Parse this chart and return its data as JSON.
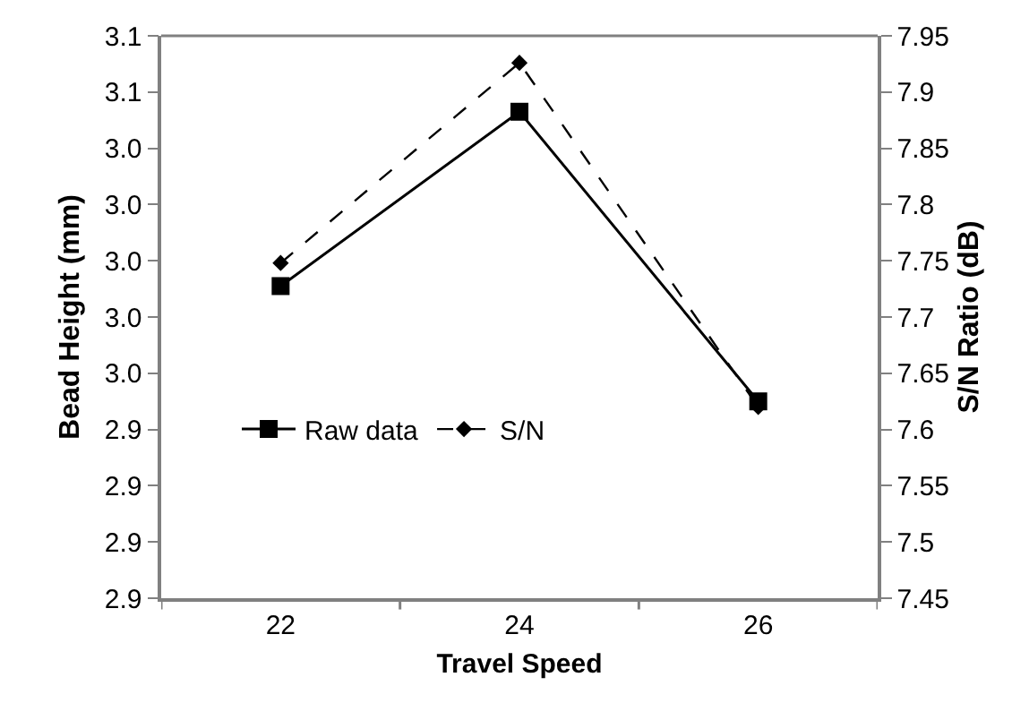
{
  "chart_data": {
    "type": "line",
    "xlabel": "Travel Speed",
    "ylabel": "Bead Height (mm)",
    "y2label": "S/N Ratio (dB)",
    "categories": [
      "22",
      "24",
      "26"
    ],
    "series": [
      {
        "name": "Raw data",
        "color": "#000000",
        "values": [
          2.991,
          3.053,
          2.95
        ],
        "marker": "square",
        "line_style": "solid"
      },
      {
        "name": "S/N",
        "color": "#000000",
        "values": [
          7.748,
          7.926,
          7.62
        ],
        "marker": "diamond",
        "line_style": "dashed",
        "axis": "y2"
      }
    ],
    "ylim": [
      2.88,
      3.08
    ],
    "yticks": [
      {
        "value": 2.88,
        "label": "2.9"
      },
      {
        "value": 2.9,
        "label": "2.9"
      },
      {
        "value": 2.92,
        "label": "2.9"
      },
      {
        "value": 2.94,
        "label": "2.9"
      },
      {
        "value": 2.96,
        "label": "3.0"
      },
      {
        "value": 2.98,
        "label": "3.0"
      },
      {
        "value": 3.0,
        "label": "3.0"
      },
      {
        "value": 3.02,
        "label": "3.0"
      },
      {
        "value": 3.04,
        "label": "3.0"
      },
      {
        "value": 3.06,
        "label": "3.1"
      },
      {
        "value": 3.08,
        "label": "3.1"
      }
    ],
    "y2lim": [
      7.45,
      7.95
    ],
    "y2ticks": [
      7.45,
      7.5,
      7.55,
      7.6,
      7.65,
      7.7,
      7.75,
      7.8,
      7.85,
      7.9,
      7.95
    ],
    "legend": "left"
  }
}
